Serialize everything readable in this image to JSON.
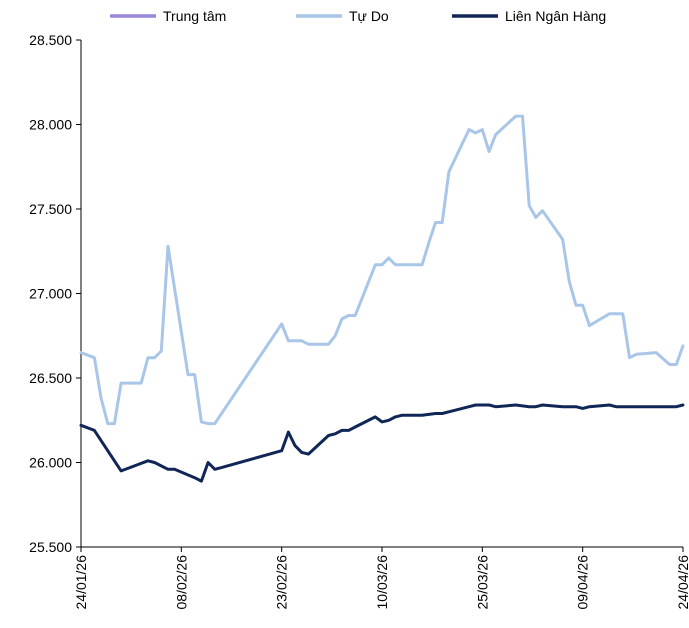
{
  "chart_data": {
    "type": "line",
    "title": "",
    "xlabel": "",
    "ylabel": "",
    "ylim": [
      25500,
      28500
    ],
    "y_ticks": [
      25500,
      26000,
      26500,
      27000,
      27500,
      28000,
      28500
    ],
    "y_tick_labels": [
      "25.500",
      "26.000",
      "26.500",
      "27.000",
      "27.500",
      "28.000",
      "28.500"
    ],
    "x_range": [
      "2026-01-24",
      "2026-04-24"
    ],
    "x_ticks": [
      "2026-01-24",
      "2026-02-08",
      "2026-02-23",
      "2026-03-10",
      "2026-03-25",
      "2026-04-09",
      "2026-04-24"
    ],
    "x_tick_labels": [
      "24/01/26",
      "08/02/26",
      "23/02/26",
      "10/03/26",
      "25/03/26",
      "09/04/26",
      "24/04/26"
    ],
    "grid": false,
    "legend_position": "top",
    "series": [
      {
        "name": "Trung tâm",
        "color": "#9b88dd",
        "points": []
      },
      {
        "name": "Tự Do",
        "color": "#a9c6e8",
        "points": [
          [
            "2026-01-24",
            26650
          ],
          [
            "2026-01-26",
            26620
          ],
          [
            "2026-01-27",
            26380
          ],
          [
            "2026-01-28",
            26230
          ],
          [
            "2026-01-29",
            26230
          ],
          [
            "2026-01-30",
            26470
          ],
          [
            "2026-02-02",
            26470
          ],
          [
            "2026-02-03",
            26620
          ],
          [
            "2026-02-04",
            26620
          ],
          [
            "2026-02-05",
            26660
          ],
          [
            "2026-02-06",
            27280
          ],
          [
            "2026-02-09",
            26520
          ],
          [
            "2026-02-10",
            26520
          ],
          [
            "2026-02-11",
            26240
          ],
          [
            "2026-02-12",
            26230
          ],
          [
            "2026-02-13",
            26230
          ],
          [
            "2026-02-23",
            26820
          ],
          [
            "2026-02-24",
            26720
          ],
          [
            "2026-02-26",
            26720
          ],
          [
            "2026-02-27",
            26700
          ],
          [
            "2026-03-02",
            26700
          ],
          [
            "2026-03-03",
            26750
          ],
          [
            "2026-03-04",
            26850
          ],
          [
            "2026-03-05",
            26870
          ],
          [
            "2026-03-06",
            26870
          ],
          [
            "2026-03-09",
            27170
          ],
          [
            "2026-03-10",
            27170
          ],
          [
            "2026-03-11",
            27210
          ],
          [
            "2026-03-12",
            27170
          ],
          [
            "2026-03-16",
            27170
          ],
          [
            "2026-03-17",
            27300
          ],
          [
            "2026-03-18",
            27420
          ],
          [
            "2026-03-19",
            27420
          ],
          [
            "2026-03-20",
            27720
          ],
          [
            "2026-03-23",
            27970
          ],
          [
            "2026-03-24",
            27950
          ],
          [
            "2026-03-25",
            27970
          ],
          [
            "2026-03-26",
            27840
          ],
          [
            "2026-03-27",
            27940
          ],
          [
            "2026-03-30",
            28050
          ],
          [
            "2026-03-31",
            28050
          ],
          [
            "2026-04-01",
            27520
          ],
          [
            "2026-04-02",
            27450
          ],
          [
            "2026-04-03",
            27490
          ],
          [
            "2026-04-06",
            27320
          ],
          [
            "2026-04-07",
            27070
          ],
          [
            "2026-04-08",
            26930
          ],
          [
            "2026-04-09",
            26930
          ],
          [
            "2026-04-10",
            26810
          ],
          [
            "2026-04-13",
            26880
          ],
          [
            "2026-04-14",
            26880
          ],
          [
            "2026-04-15",
            26880
          ],
          [
            "2026-04-16",
            26620
          ],
          [
            "2026-04-17",
            26640
          ],
          [
            "2026-04-20",
            26650
          ],
          [
            "2026-04-22",
            26580
          ],
          [
            "2026-04-23",
            26580
          ],
          [
            "2026-04-24",
            26690
          ]
        ]
      },
      {
        "name": "Liên Ngân Hàng",
        "color": "#0f2656",
        "points": [
          [
            "2026-01-24",
            26220
          ],
          [
            "2026-01-26",
            26190
          ],
          [
            "2026-01-30",
            25950
          ],
          [
            "2026-02-01",
            25980
          ],
          [
            "2026-02-03",
            26010
          ],
          [
            "2026-02-04",
            26000
          ],
          [
            "2026-02-06",
            25960
          ],
          [
            "2026-02-07",
            25960
          ],
          [
            "2026-02-10",
            25910
          ],
          [
            "2026-02-11",
            25890
          ],
          [
            "2026-02-12",
            26000
          ],
          [
            "2026-02-13",
            25960
          ],
          [
            "2026-02-14",
            25970
          ],
          [
            "2026-02-23",
            26070
          ],
          [
            "2026-02-24",
            26180
          ],
          [
            "2026-02-25",
            26100
          ],
          [
            "2026-02-26",
            26060
          ],
          [
            "2026-02-27",
            26050
          ],
          [
            "2026-03-02",
            26160
          ],
          [
            "2026-03-03",
            26170
          ],
          [
            "2026-03-04",
            26190
          ],
          [
            "2026-03-05",
            26190
          ],
          [
            "2026-03-06",
            26210
          ],
          [
            "2026-03-09",
            26270
          ],
          [
            "2026-03-10",
            26240
          ],
          [
            "2026-03-11",
            26250
          ],
          [
            "2026-03-12",
            26270
          ],
          [
            "2026-03-13",
            26280
          ],
          [
            "2026-03-16",
            26280
          ],
          [
            "2026-03-18",
            26290
          ],
          [
            "2026-03-19",
            26290
          ],
          [
            "2026-03-20",
            26300
          ],
          [
            "2026-03-23",
            26330
          ],
          [
            "2026-03-24",
            26340
          ],
          [
            "2026-03-25",
            26340
          ],
          [
            "2026-03-26",
            26340
          ],
          [
            "2026-03-27",
            26330
          ],
          [
            "2026-03-30",
            26340
          ],
          [
            "2026-04-01",
            26330
          ],
          [
            "2026-04-02",
            26330
          ],
          [
            "2026-04-03",
            26340
          ],
          [
            "2026-04-06",
            26330
          ],
          [
            "2026-04-08",
            26330
          ],
          [
            "2026-04-09",
            26320
          ],
          [
            "2026-04-10",
            26330
          ],
          [
            "2026-04-13",
            26340
          ],
          [
            "2026-04-14",
            26330
          ],
          [
            "2026-04-17",
            26330
          ],
          [
            "2026-04-20",
            26330
          ],
          [
            "2026-04-21",
            26330
          ],
          [
            "2026-04-22",
            26330
          ],
          [
            "2026-04-23",
            26330
          ],
          [
            "2026-04-24",
            26340
          ]
        ]
      }
    ]
  }
}
